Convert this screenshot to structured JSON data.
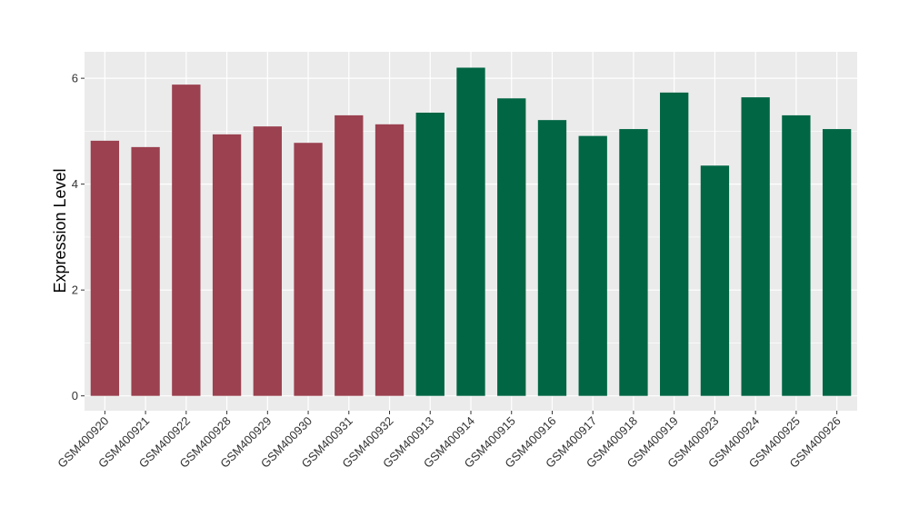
{
  "chart_data": {
    "type": "bar",
    "ylabel": "Expression Level",
    "xlabel": "",
    "ylim": [
      -0.28,
      6.5
    ],
    "yticks": [
      0,
      2,
      4,
      6
    ],
    "grid": true,
    "legend": "none",
    "colors": {
      "group_a": "#9b4150",
      "group_b": "#006644",
      "panel": "#ebebeb",
      "gridline": "#ffffff"
    },
    "categories": [
      "GSM400920",
      "GSM400921",
      "GSM400922",
      "GSM400928",
      "GSM400929",
      "GSM400930",
      "GSM400931",
      "GSM400932",
      "GSM400913",
      "GSM400914",
      "GSM400915",
      "GSM400916",
      "GSM400917",
      "GSM400918",
      "GSM400919",
      "GSM400923",
      "GSM400924",
      "GSM400925",
      "GSM400926"
    ],
    "values": [
      4.82,
      4.7,
      5.88,
      4.94,
      5.09,
      4.78,
      5.3,
      5.13,
      5.35,
      6.2,
      5.62,
      5.21,
      4.91,
      5.04,
      5.73,
      4.35,
      5.64,
      5.3,
      5.04
    ],
    "groups": [
      "a",
      "a",
      "a",
      "a",
      "a",
      "a",
      "a",
      "a",
      "b",
      "b",
      "b",
      "b",
      "b",
      "b",
      "b",
      "b",
      "b",
      "b",
      "b"
    ]
  }
}
